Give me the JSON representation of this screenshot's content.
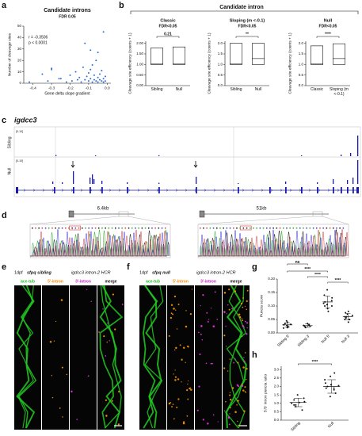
{
  "panel_labels": [
    "a",
    "b",
    "c",
    "d",
    "e",
    "f",
    "g",
    "h"
  ],
  "b_header": "Candidate intron",
  "chart_data": [
    {
      "type": "scatter",
      "title": "Candidate introns",
      "subtitle": "FDR 0.05",
      "x_label": "Gene delta slope gradient",
      "y_label": "Number of cleavage sites",
      "annotations": [
        "r = -0.3506",
        "p < 0.0001"
      ],
      "color": "#2f6fd6",
      "x": [
        -0.42,
        -0.35,
        -0.32,
        -0.3,
        -0.3,
        -0.26,
        -0.25,
        -0.22,
        -0.2,
        -0.19,
        -0.17,
        -0.16,
        -0.15,
        -0.14,
        -0.13,
        -0.12,
        -0.12,
        -0.11,
        -0.1,
        -0.1,
        -0.09,
        -0.09,
        -0.09,
        -0.08,
        -0.08,
        -0.07,
        -0.07,
        -0.06,
        -0.06,
        -0.05,
        -0.05,
        -0.05,
        -0.04,
        -0.04,
        -0.03,
        -0.03,
        -0.02,
        -0.02,
        -0.02,
        -0.01,
        -0.01
      ],
      "values": [
        1,
        8,
        2,
        13,
        12,
        4,
        4,
        1,
        7,
        2,
        10,
        3,
        5,
        1,
        14,
        3,
        35,
        6,
        2,
        9,
        12,
        4,
        29,
        1,
        16,
        7,
        3,
        2,
        20,
        5,
        1,
        27,
        8,
        3,
        2,
        11,
        4,
        1,
        45,
        6,
        2
      ],
      "xlim": [
        -0.45,
        0.02
      ],
      "xticks": [
        -0.4,
        -0.3,
        -0.2,
        -0.1,
        {
          "value": 0,
          "label": "0.0"
        }
      ],
      "ylim": [
        0,
        50
      ],
      "yticks": [
        0,
        10,
        20,
        30,
        40,
        50
      ]
    },
    {
      "type": "range_bar",
      "title": "Classic",
      "subtitle": "FDR<0.05",
      "annotation": "0.21",
      "y_label": "Cleavage site efficiency (counts + 1)",
      "categories": [
        "Sibling",
        "Null"
      ],
      "low": [
        1.0,
        1.0
      ],
      "high": [
        1.78,
        1.83
      ],
      "median": [
        1.02,
        1.02
      ],
      "ylim": [
        0,
        2.1
      ],
      "yticks": [
        {
          "value": 0,
          "label": "0.00"
        },
        {
          "value": 0.5,
          "label": "0.50"
        },
        {
          "value": 1,
          "label": "1.00"
        },
        {
          "value": 1.5,
          "label": "1.50"
        },
        {
          "value": 2,
          "label": "2.00"
        }
      ]
    },
    {
      "type": "range_bar",
      "title": "Sloping (m <-0.1)",
      "subtitle": "FDR<0.05",
      "annotation": "**",
      "y_label": "Cleavage site efficiency (counts + 1)",
      "categories": [
        "Sibling",
        "Null"
      ],
      "low": [
        1.0,
        1.0
      ],
      "high": [
        2.0,
        2.0
      ],
      "median": [
        1.02,
        1.28
      ],
      "ylim": [
        0,
        2.1
      ],
      "yticks": [
        {
          "value": 0,
          "label": "0.0"
        },
        0.5,
        {
          "value": 1,
          "label": "1.0"
        },
        1.5,
        {
          "value": 2,
          "label": "2.0"
        }
      ]
    },
    {
      "type": "range_bar",
      "title": "Null",
      "subtitle": "FDR<0.05",
      "annotation": "****",
      "y_label": "Cleavage site efficiency (counts + 1)",
      "categories": [
        "Classic",
        "Sloping (m <-0.1)"
      ],
      "low": [
        1.0,
        1.0
      ],
      "high": [
        1.88,
        1.98
      ],
      "median": [
        1.02,
        1.28
      ],
      "ylim": [
        0,
        2.1
      ],
      "yticks": [
        {
          "value": 0,
          "label": "0.0"
        },
        0.5,
        {
          "value": 1,
          "label": "1.0"
        },
        1.5,
        {
          "value": 2,
          "label": "2.0"
        }
      ]
    },
    {
      "type": "dot_plot",
      "y_label": "Puncta score",
      "categories": [
        "Sibling 5'",
        "Sibling 3'",
        "Null 5'",
        "Null 3'"
      ],
      "points": [
        [
          0.02,
          0.025,
          0.03,
          0.035,
          0.028,
          0.04,
          0.018,
          0.032,
          0.022,
          0.045
        ],
        [
          0.02,
          0.025,
          0.03,
          0.028,
          0.035,
          0.022,
          0.03,
          0.026
        ],
        [
          0.08,
          0.09,
          0.1,
          0.11,
          0.12,
          0.13,
          0.14,
          0.16,
          0.1,
          0.115,
          0.105
        ],
        [
          0.04,
          0.05,
          0.055,
          0.06,
          0.065,
          0.07,
          0.075,
          0.08,
          0.06,
          0.05
        ]
      ],
      "means": [
        0.03,
        0.027,
        0.115,
        0.06
      ],
      "sd": [
        0.008,
        0.006,
        0.022,
        0.012
      ],
      "annotations": [
        "ns",
        "****",
        "****",
        "****"
      ],
      "ylim": [
        0,
        0.2
      ],
      "yticks": [
        {
          "value": 0,
          "label": "0.00"
        },
        0.05,
        {
          "value": 0.1,
          "label": "0.10"
        },
        0.15,
        {
          "value": 0.2,
          "label": "0.20"
        }
      ]
    },
    {
      "type": "dot_plot",
      "y_label": "5'/3' intron puncta ratio",
      "categories": [
        "Sibling",
        "Null"
      ],
      "points": [
        [
          0.6,
          0.8,
          0.9,
          1.0,
          1.1,
          1.2,
          1.3,
          1.5,
          0.9,
          1.05
        ],
        [
          1.4,
          1.6,
          1.8,
          1.9,
          2.0,
          2.1,
          2.2,
          2.4,
          2.6,
          2.8,
          1.9,
          2.05
        ]
      ],
      "means": [
        1.05,
        2.0
      ],
      "sd": [
        0.25,
        0.4
      ],
      "annotations": [
        "****"
      ],
      "ylim": [
        0,
        3.2
      ],
      "yticks": [
        {
          "value": 0,
          "label": "0.0"
        },
        0.5,
        {
          "value": 1,
          "label": "1.0"
        },
        1.5,
        {
          "value": 2,
          "label": "2.0"
        },
        2.5,
        {
          "value": 3,
          "label": "3.0"
        }
      ]
    }
  ],
  "genome": {
    "title": "igdcc3",
    "tracks": [
      "Sibling",
      "Null"
    ],
    "scales": [
      "[0-10]",
      "[0-10]"
    ]
  },
  "sanger": {
    "labels": [
      "6.4kb",
      "51kb"
    ]
  },
  "imaging": [
    {
      "stage": "1dpf",
      "genotype": "sfpq sibling",
      "probe": "igdcc3 intron-2 HCR",
      "channels": [
        "ace-tub",
        "5'-intron",
        "3'-intron",
        "merge"
      ]
    },
    {
      "stage": "1dpf",
      "genotype": "sfpq null",
      "probe": "igdcc3 intron-2 HCR",
      "channels": [
        "ace-tub",
        "5'-intron",
        "3'-intron",
        "merge"
      ]
    }
  ]
}
